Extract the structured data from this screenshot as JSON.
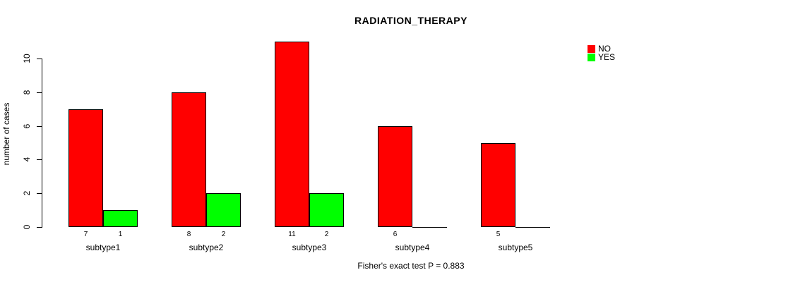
{
  "chart_data": {
    "type": "bar",
    "title": "RADIATION_THERAPY",
    "xlabel": "",
    "ylabel": "number of cases",
    "categories": [
      "subtype1",
      "subtype2",
      "subtype3",
      "subtype4",
      "subtype5"
    ],
    "series": [
      {
        "name": "NO",
        "color": "#ff0000",
        "values": [
          7,
          8,
          11,
          6,
          5
        ]
      },
      {
        "name": "YES",
        "color": "#00ff00",
        "values": [
          1,
          2,
          2,
          0,
          0
        ]
      }
    ],
    "yticks": [
      0,
      2,
      4,
      6,
      8,
      10
    ],
    "ylim": [
      0,
      11
    ],
    "grid": false,
    "legend_position": "top-right",
    "bar_value_labels_shown": true,
    "zero_values_unlabeled": true,
    "annotation": "Fisher's exact test P = 0.883"
  },
  "colors": {
    "background": "#ffffff",
    "axis": "#000000",
    "text": "#000000",
    "bar_no": "#ff0000",
    "bar_yes": "#00ff00"
  }
}
